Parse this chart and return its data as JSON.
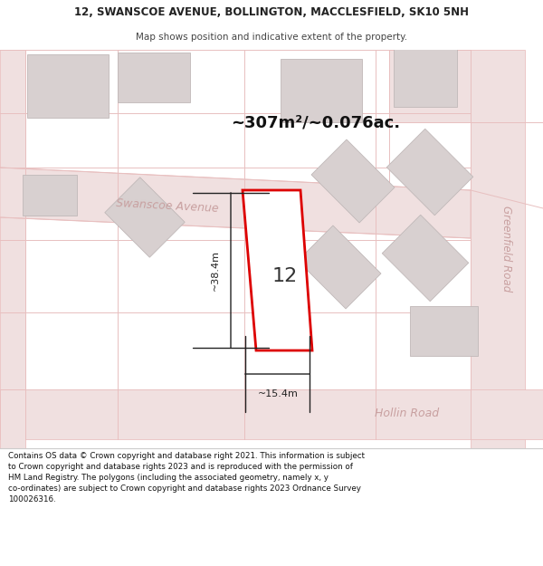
{
  "title_line1": "12, SWANSCOE AVENUE, BOLLINGTON, MACCLESFIELD, SK10 5NH",
  "title_line2": "Map shows position and indicative extent of the property.",
  "area_text": "~307m²/~0.076ac.",
  "house_number": "12",
  "dim_height": "~38.4m",
  "dim_width": "~15.4m",
  "street_swanscoe": "Swanscoe Avenue",
  "street_greenfield": "Greenfield Road",
  "street_hollin": "Hollin Road",
  "footer_text": "Contains OS data © Crown copyright and database right 2021. This information is subject\nto Crown copyright and database rights 2023 and is reproduced with the permission of\nHM Land Registry. The polygons (including the associated geometry, namely x, y\nco-ordinates) are subject to Crown copyright and database rights 2023 Ordnance Survey\n100026316.",
  "map_bg": "#ffffff",
  "road_fill": "#f0e0e0",
  "road_edge": "#e8b8b8",
  "road_line": "#e8c0c0",
  "plot_color": "#dd0000",
  "bld_fill": "#d8d0d0",
  "bld_edge": "#c0b8b8",
  "text_pink": "#c8a0a0",
  "dim_color": "#222222",
  "area_color": "#111111",
  "num_color": "#333333",
  "footer_bg": "#ffffff",
  "title_fg": "#222222"
}
